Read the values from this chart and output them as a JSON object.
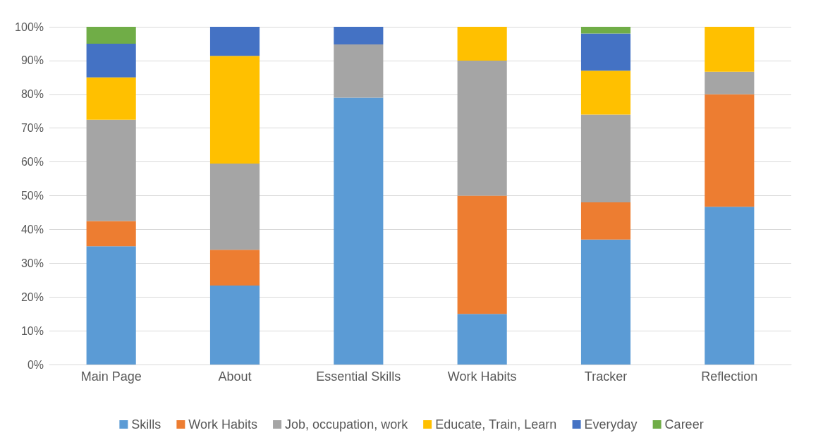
{
  "chart_data": {
    "type": "bar",
    "stacked": true,
    "categories": [
      "Main Page",
      "About",
      "Essential Skills",
      "Work Habits",
      "Tracker",
      "Reflection"
    ],
    "series": [
      {
        "name": "Skills",
        "color": "#5b9bd5",
        "values": [
          35,
          23.4,
          79,
          15,
          37,
          46.7
        ]
      },
      {
        "name": "Work Habits",
        "color": "#ed7d31",
        "values": [
          7.5,
          10.6,
          null,
          35,
          11,
          33.3
        ]
      },
      {
        "name": "Job, occupation, work",
        "color": "#a5a5a5",
        "values": [
          30,
          25.5,
          15.8,
          40,
          26,
          6.7
        ]
      },
      {
        "name": "Educate, Train, Learn",
        "color": "#ffc000",
        "values": [
          12.5,
          31.9,
          null,
          10,
          13,
          13.3
        ]
      },
      {
        "name": "Everyday",
        "color": "#4472c4",
        "values": [
          10,
          8.6,
          5.2,
          null,
          11,
          null
        ]
      },
      {
        "name": "Career",
        "color": "#70ad47",
        "values": [
          5,
          null,
          null,
          null,
          2,
          null
        ]
      }
    ],
    "ylim": [
      0,
      100
    ],
    "yticks": [
      {
        "value": 0,
        "label": "0%"
      },
      {
        "value": 10,
        "label": "10%"
      },
      {
        "value": 20,
        "label": "20%"
      },
      {
        "value": 30,
        "label": "30%"
      },
      {
        "value": 40,
        "label": "40%"
      },
      {
        "value": 50,
        "label": "50%"
      },
      {
        "value": 60,
        "label": "60%"
      },
      {
        "value": 70,
        "label": "70%"
      },
      {
        "value": 80,
        "label": "80%"
      },
      {
        "value": 90,
        "label": "90%"
      },
      {
        "value": 100,
        "label": "100%"
      }
    ],
    "grid": "y",
    "legend": "bottom"
  }
}
